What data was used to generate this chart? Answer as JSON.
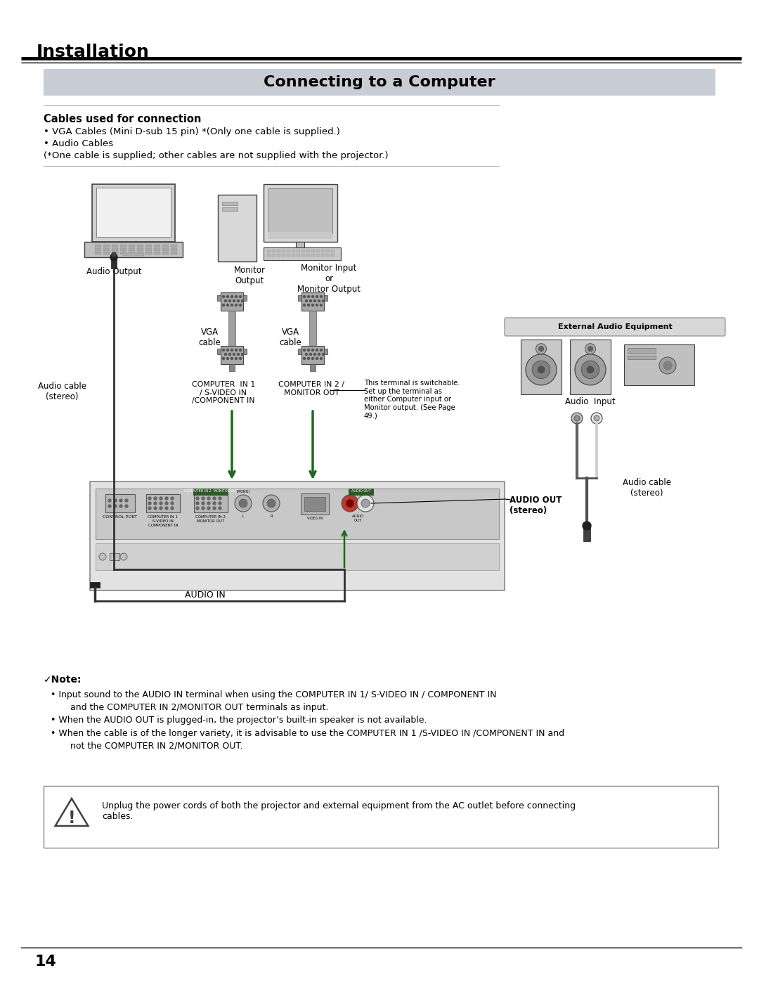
{
  "page_bg": "#ffffff",
  "header_section_title": "Installation",
  "box_title": "Connecting to a Computer",
  "box_bg": "#c8ccd4",
  "cables_header": "Cables used for connection",
  "bullet1": "• VGA Cables (Mini D-sub 15 pin) *(Only one cable is supplied.)",
  "bullet2": "• Audio Cables",
  "bullet3": "(*One cable is supplied; other cables are not supplied with the projector.)",
  "note_header": "✓Note:",
  "note1": "• Input sound to the AUDIO IN terminal when using the COMPUTER IN 1/ S-VIDEO IN / COMPONENT IN",
  "note1b": "   and the COMPUTER IN 2/MONITOR OUT terminals as input.",
  "note2": "• When the AUDIO OUT is plugged-in, the projector’s built-in speaker is not available.",
  "note3": "• When the cable is of the longer variety, it is advisable to use the COMPUTER IN 1 /S-VIDEO IN /COMPONENT IN and",
  "note3b": "   not the COMPUTER IN 2/MONITOR OUT.",
  "warning_text": "Unplug the power cords of both the projector and external equipment from the AC outlet before connecting\ncables.",
  "page_number": "14",
  "label_audio_output": "Audio Output",
  "label_monitor_output": "Monitor\nOutput",
  "label_monitor_input": "Monitor Input\nor\nMonitor Output",
  "label_vga_cable1": "VGA\ncable",
  "label_vga_cable2": "VGA\ncable",
  "label_audio_cable1": "Audio cable\n(stereo)",
  "label_computer_in1": "COMPUTER  IN 1\n/ S-VIDEO IN\n/COMPONENT IN",
  "label_computer_in2": "COMPUTER IN 2 /\nMONITOR OUT",
  "label_switchable": "This terminal is switchable.\nSet up the terminal as\neither Computer input or\nMonitor output. (See Page\n49.)",
  "label_external_audio": "External Audio Equipment",
  "label_audio_input": "Audio  Input",
  "label_audio_cable2": "Audio cable\n(stereo)",
  "label_audio_out": "AUDIO OUT\n(stereo)",
  "label_audio_in": "AUDIO IN",
  "label_control_port": "CONTROL PORT",
  "label_comp_in1_panel": "COMPUTER IN 1\nS-VIDEO IN\nCOMPONENT IN",
  "label_comp_in2_panel": "COMPUTER IN 2\nMONITOR OUT"
}
